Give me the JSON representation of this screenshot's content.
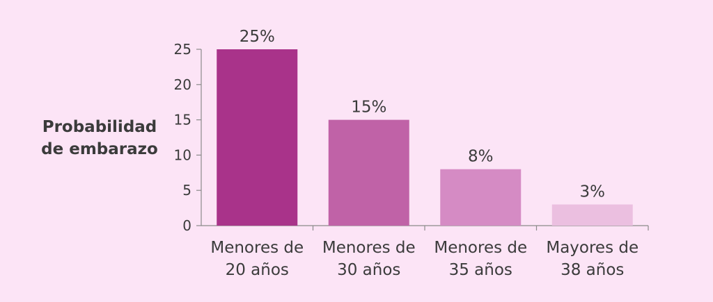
{
  "chart_data": {
    "type": "bar",
    "title": "",
    "ylabel": [
      "Probabilidad",
      "de embarazo"
    ],
    "xlabel": "",
    "ylim": [
      0,
      25
    ],
    "yticks": [
      0,
      5,
      10,
      15,
      20,
      25
    ],
    "categories": [
      [
        "Menores de",
        "20 años"
      ],
      [
        "Menores de",
        "30 años"
      ],
      [
        "Menores de",
        "35 años"
      ],
      [
        "Mayores de",
        "38 años"
      ]
    ],
    "values": [
      25,
      15,
      8,
      3
    ],
    "value_labels": [
      "25%",
      "15%",
      "8%",
      "3%"
    ],
    "colors": [
      "#a9338a",
      "#c062a7",
      "#d58bc4",
      "#ebbfe0"
    ],
    "grid": false,
    "legend": "none"
  }
}
